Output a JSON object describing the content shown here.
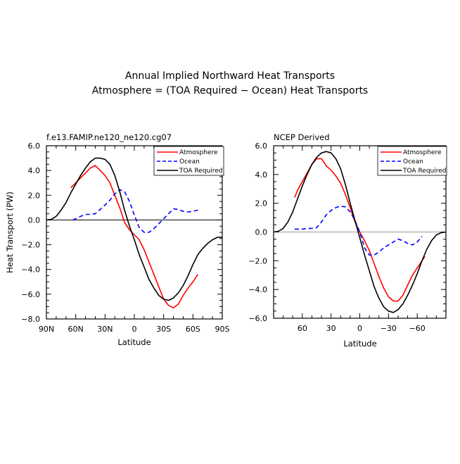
{
  "figure": {
    "title_line1": "Annual Implied Northward Heat Transports",
    "title_line2": "Atmosphere = (TOA Required − Ocean) Heat Transports"
  },
  "colors": {
    "atmosphere": "#ff0000",
    "ocean": "#0000ff",
    "toa": "#000000",
    "zero_line_left": "#000000",
    "zero_line_right": "#999999"
  },
  "chart_data": [
    {
      "type": "line",
      "title": "f.e13.FAMIP.ne120_ne120.cg07",
      "xlabel": "Latitude",
      "ylabel": "Heat Transport (PW)",
      "xlim": [
        90,
        -90
      ],
      "ylim": [
        -8,
        6
      ],
      "x_ticks": [
        90,
        60,
        30,
        0,
        -30,
        -60,
        -90
      ],
      "x_tick_labels": [
        "90N",
        "60N",
        "30N",
        "0",
        "30S",
        "60S",
        "90S"
      ],
      "y_ticks": [
        6,
        4,
        2,
        0,
        -2,
        -4,
        -6,
        -8
      ],
      "y_tick_labels": [
        "6.0",
        "4.0",
        "2.0",
        "0.0",
        "−2.0",
        "−4.0",
        "−6.0",
        "−8.0"
      ],
      "legend_position": "top-right",
      "zero_line": true,
      "series": [
        {
          "name": "Atmosphere",
          "style": "solid",
          "color_key": "atmosphere",
          "x": [
            65,
            60,
            55,
            50,
            45,
            40,
            35,
            30,
            25,
            20,
            15,
            10,
            5,
            0,
            -5,
            -10,
            -15,
            -20,
            -25,
            -30,
            -35,
            -40,
            -45,
            -50,
            -55,
            -60,
            -65
          ],
          "y": [
            2.6,
            3.0,
            3.4,
            3.8,
            4.2,
            4.4,
            4.0,
            3.6,
            3.0,
            2.0,
            1.0,
            -0.2,
            -0.8,
            -1.2,
            -1.6,
            -2.4,
            -3.4,
            -4.4,
            -5.4,
            -6.4,
            -6.9,
            -7.1,
            -6.8,
            -6.1,
            -5.5,
            -5.0,
            -4.4
          ]
        },
        {
          "name": "Ocean",
          "style": "dashed",
          "color_key": "ocean",
          "x": [
            63,
            60,
            55,
            50,
            45,
            40,
            35,
            30,
            25,
            20,
            15,
            10,
            5,
            0,
            -5,
            -10,
            -15,
            -20,
            -25,
            -30,
            -35,
            -40,
            -45,
            -50,
            -55,
            -60,
            -65
          ],
          "y": [
            0.0,
            0.1,
            0.3,
            0.45,
            0.45,
            0.5,
            0.85,
            1.2,
            1.6,
            2.1,
            2.45,
            2.3,
            1.5,
            0.4,
            -0.6,
            -1.0,
            -1.0,
            -0.7,
            -0.3,
            0.1,
            0.5,
            0.9,
            0.85,
            0.7,
            0.65,
            0.7,
            0.8
          ]
        },
        {
          "name": "TOA Required",
          "style": "solid",
          "color_key": "toa",
          "x": [
            90,
            85,
            80,
            75,
            70,
            65,
            60,
            55,
            50,
            45,
            40,
            35,
            30,
            25,
            20,
            15,
            10,
            5,
            0,
            -5,
            -10,
            -15,
            -20,
            -25,
            -30,
            -35,
            -40,
            -45,
            -50,
            -55,
            -60,
            -65,
            -70,
            -75,
            -80,
            -85,
            -90
          ],
          "y": [
            0.0,
            0.05,
            0.3,
            0.8,
            1.4,
            2.2,
            2.9,
            3.6,
            4.2,
            4.7,
            5.0,
            5.0,
            4.9,
            4.5,
            3.6,
            2.3,
            0.8,
            -0.5,
            -1.6,
            -2.8,
            -3.8,
            -4.8,
            -5.5,
            -6.1,
            -6.4,
            -6.5,
            -6.3,
            -5.9,
            -5.3,
            -4.5,
            -3.6,
            -2.8,
            -2.3,
            -1.9,
            -1.6,
            -1.4,
            -1.4
          ]
        }
      ]
    },
    {
      "type": "line",
      "title": "NCEP Derived",
      "xlabel": "Latitude",
      "ylabel": "",
      "xlim": [
        90,
        -90
      ],
      "ylim": [
        -6,
        6
      ],
      "x_ticks": [
        60,
        30,
        0,
        -30,
        -60
      ],
      "x_tick_labels": [
        "60",
        "30",
        "0",
        "−30",
        "−60"
      ],
      "y_ticks": [
        6,
        4,
        2,
        0,
        -2,
        -4,
        -6
      ],
      "y_tick_labels": [
        "6.0",
        "4.0",
        "2.0",
        "0.0",
        "−2.0",
        "−4.0",
        "−6.0"
      ],
      "legend_position": "top-right",
      "zero_line": true,
      "series": [
        {
          "name": "Atmosphere",
          "style": "solid",
          "color_key": "atmosphere",
          "x": [
            68,
            65,
            60,
            55,
            50,
            45,
            40,
            35,
            30,
            25,
            20,
            15,
            10,
            5,
            0,
            -5,
            -10,
            -15,
            -20,
            -25,
            -30,
            -35,
            -40,
            -45,
            -50,
            -55,
            -60,
            -65,
            -68
          ],
          "y": [
            2.4,
            2.9,
            3.5,
            4.1,
            4.7,
            5.1,
            5.1,
            4.6,
            4.3,
            3.9,
            3.4,
            2.6,
            1.7,
            0.7,
            0.0,
            -0.6,
            -1.3,
            -2.2,
            -3.1,
            -3.9,
            -4.5,
            -4.8,
            -4.8,
            -4.4,
            -3.7,
            -3.0,
            -2.5,
            -2.0,
            -1.7
          ]
        },
        {
          "name": "Ocean",
          "style": "dashed",
          "color_key": "ocean",
          "x": [
            68,
            60,
            55,
            50,
            45,
            40,
            35,
            30,
            25,
            20,
            15,
            10,
            5,
            0,
            -5,
            -10,
            -15,
            -20,
            -25,
            -30,
            -35,
            -40,
            -45,
            -50,
            -55,
            -60,
            -65
          ],
          "y": [
            0.2,
            0.2,
            0.25,
            0.25,
            0.3,
            0.7,
            1.2,
            1.5,
            1.7,
            1.8,
            1.75,
            1.4,
            0.8,
            0.0,
            -1.1,
            -1.6,
            -1.6,
            -1.4,
            -1.1,
            -0.9,
            -0.7,
            -0.5,
            -0.6,
            -0.8,
            -0.9,
            -0.7,
            -0.3
          ]
        },
        {
          "name": "TOA Required",
          "style": "solid",
          "color_key": "toa",
          "x": [
            90,
            85,
            80,
            75,
            70,
            65,
            60,
            55,
            50,
            45,
            40,
            35,
            30,
            25,
            20,
            15,
            10,
            5,
            0,
            -5,
            -10,
            -15,
            -20,
            -25,
            -30,
            -35,
            -40,
            -45,
            -50,
            -55,
            -60,
            -65,
            -70,
            -75,
            -80,
            -85,
            -90
          ],
          "y": [
            0.0,
            0.05,
            0.25,
            0.7,
            1.4,
            2.3,
            3.2,
            4.0,
            4.7,
            5.2,
            5.5,
            5.6,
            5.5,
            5.1,
            4.4,
            3.3,
            2.0,
            0.8,
            -0.4,
            -1.6,
            -2.7,
            -3.8,
            -4.6,
            -5.2,
            -5.5,
            -5.6,
            -5.4,
            -5.0,
            -4.4,
            -3.7,
            -2.9,
            -2.0,
            -1.2,
            -0.6,
            -0.2,
            -0.05,
            0.0
          ]
        }
      ]
    }
  ]
}
